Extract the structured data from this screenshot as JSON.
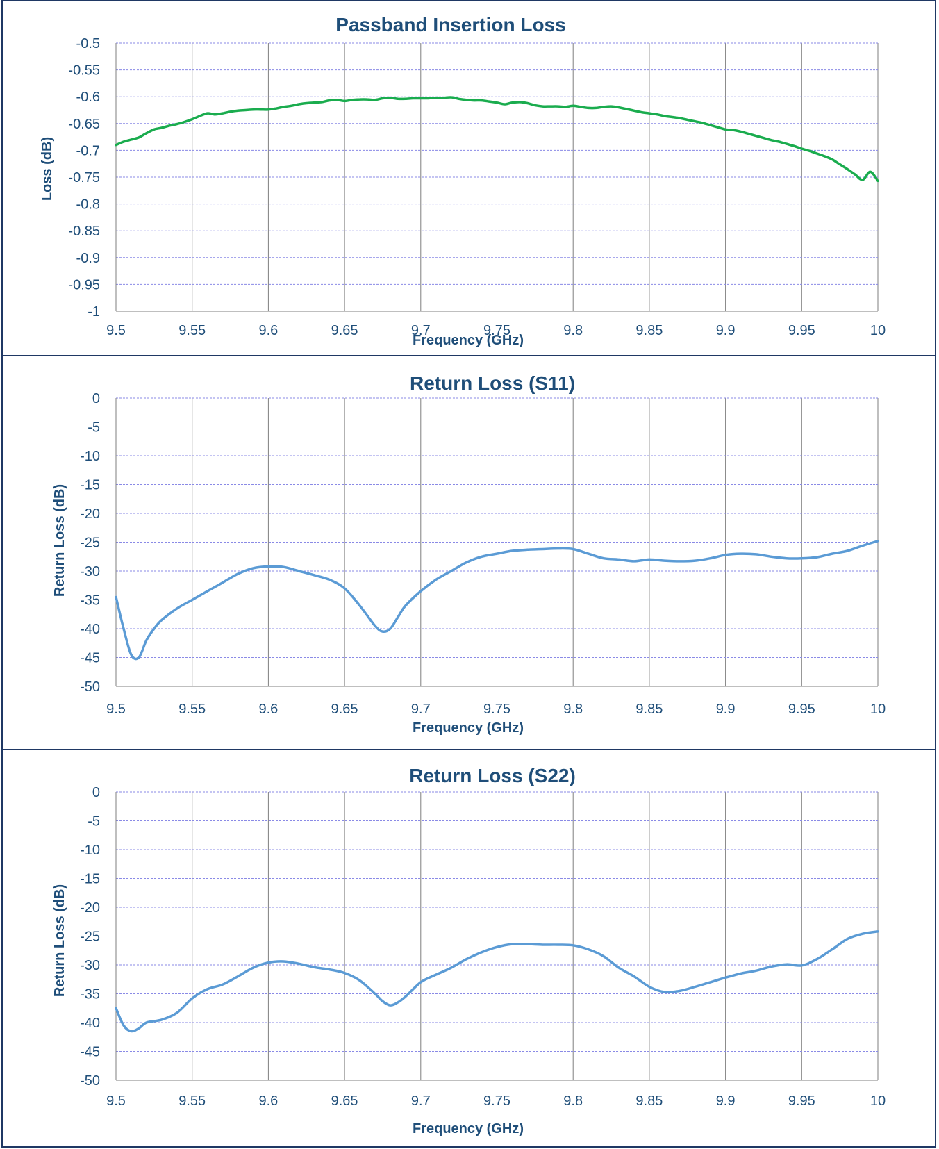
{
  "chart_data": [
    {
      "type": "line",
      "title": "Passband Insertion Loss",
      "xlabel": "Frequency (GHz)",
      "ylabel": "Loss (dB)",
      "xlim": [
        9.5,
        10
      ],
      "ylim": [
        -1,
        -0.5
      ],
      "x_ticks": [
        "9.5",
        "9.55",
        "9.6",
        "9.65",
        "9.7",
        "9.75",
        "9.8",
        "9.85",
        "9.9",
        "9.95",
        "10"
      ],
      "y_ticks": [
        "-0.5",
        "-0.55",
        "-0.6",
        "-0.65",
        "-0.7",
        "-0.75",
        "-0.8",
        "-0.85",
        "-0.9",
        "-0.95",
        "-1"
      ],
      "y_tick_values": [
        -0.5,
        -0.55,
        -0.6,
        -0.65,
        -0.7,
        -0.75,
        -0.8,
        -0.85,
        -0.9,
        -0.95,
        -1
      ],
      "grid": true,
      "color": "#1aac4e",
      "series": [
        {
          "x": [
            9.5,
            9.505,
            9.51,
            9.515,
            9.52,
            9.525,
            9.53,
            9.535,
            9.54,
            9.545,
            9.55,
            9.555,
            9.56,
            9.565,
            9.57,
            9.575,
            9.58,
            9.585,
            9.59,
            9.595,
            9.6,
            9.605,
            9.61,
            9.615,
            9.62,
            9.625,
            9.63,
            9.635,
            9.64,
            9.645,
            9.65,
            9.655,
            9.66,
            9.665,
            9.67,
            9.675,
            9.68,
            9.685,
            9.69,
            9.695,
            9.7,
            9.705,
            9.71,
            9.715,
            9.72,
            9.725,
            9.73,
            9.735,
            9.74,
            9.745,
            9.75,
            9.755,
            9.76,
            9.765,
            9.77,
            9.775,
            9.78,
            9.785,
            9.79,
            9.795,
            9.8,
            9.805,
            9.81,
            9.815,
            9.82,
            9.825,
            9.83,
            9.835,
            9.84,
            9.845,
            9.85,
            9.855,
            9.86,
            9.865,
            9.87,
            9.875,
            9.88,
            9.885,
            9.89,
            9.895,
            9.9,
            9.905,
            9.91,
            9.915,
            9.92,
            9.925,
            9.93,
            9.935,
            9.94,
            9.945,
            9.95,
            9.955,
            9.96,
            9.965,
            9.97,
            9.975,
            9.98,
            9.985,
            9.99,
            9.995,
            10
          ],
          "y": [
            -0.69,
            -0.684,
            -0.68,
            -0.676,
            -0.668,
            -0.661,
            -0.658,
            -0.654,
            -0.651,
            -0.647,
            -0.642,
            -0.636,
            -0.631,
            -0.633,
            -0.631,
            -0.628,
            -0.626,
            -0.625,
            -0.624,
            -0.624,
            -0.624,
            -0.622,
            -0.619,
            -0.617,
            -0.614,
            -0.612,
            -0.611,
            -0.61,
            -0.607,
            -0.606,
            -0.608,
            -0.606,
            -0.605,
            -0.605,
            -0.606,
            -0.603,
            -0.602,
            -0.604,
            -0.604,
            -0.603,
            -0.603,
            -0.603,
            -0.602,
            -0.602,
            -0.601,
            -0.604,
            -0.606,
            -0.607,
            -0.607,
            -0.609,
            -0.611,
            -0.614,
            -0.611,
            -0.61,
            -0.612,
            -0.616,
            -0.618,
            -0.618,
            -0.618,
            -0.619,
            -0.617,
            -0.619,
            -0.621,
            -0.621,
            -0.619,
            -0.618,
            -0.62,
            -0.623,
            -0.626,
            -0.629,
            -0.631,
            -0.633,
            -0.636,
            -0.638,
            -0.64,
            -0.643,
            -0.646,
            -0.649,
            -0.653,
            -0.657,
            -0.661,
            -0.662,
            -0.665,
            -0.669,
            -0.673,
            -0.677,
            -0.681,
            -0.684,
            -0.688,
            -0.692,
            -0.697,
            -0.701,
            -0.706,
            -0.711,
            -0.717,
            -0.726,
            -0.735,
            -0.745,
            -0.755,
            -0.74,
            -0.757
          ]
        }
      ]
    },
    {
      "type": "line",
      "title": "Return Loss (S11)",
      "xlabel": "Frequency (GHz)",
      "ylabel": "Return Loss (dB)",
      "xlim": [
        9.5,
        10
      ],
      "ylim": [
        -50,
        0
      ],
      "x_ticks": [
        "9.5",
        "9.55",
        "9.6",
        "9.65",
        "9.7",
        "9.75",
        "9.8",
        "9.85",
        "9.9",
        "9.95",
        "10"
      ],
      "y_ticks": [
        "0",
        "-5",
        "-10",
        "-15",
        "-20",
        "-25",
        "-30",
        "-35",
        "-40",
        "-45",
        "-50"
      ],
      "y_tick_values": [
        0,
        -5,
        -10,
        -15,
        -20,
        -25,
        -30,
        -35,
        -40,
        -45,
        -50
      ],
      "grid": true,
      "color": "#5b9bd5",
      "series": [
        {
          "x": [
            9.5,
            9.505,
            9.51,
            9.515,
            9.52,
            9.525,
            9.53,
            9.54,
            9.55,
            9.56,
            9.57,
            9.58,
            9.59,
            9.6,
            9.61,
            9.62,
            9.63,
            9.64,
            9.65,
            9.66,
            9.67,
            9.675,
            9.68,
            9.685,
            9.69,
            9.7,
            9.71,
            9.72,
            9.73,
            9.74,
            9.75,
            9.76,
            9.77,
            9.78,
            9.79,
            9.8,
            9.81,
            9.82,
            9.83,
            9.84,
            9.85,
            9.86,
            9.87,
            9.88,
            9.89,
            9.9,
            9.91,
            9.92,
            9.93,
            9.94,
            9.95,
            9.96,
            9.97,
            9.98,
            9.99,
            10
          ],
          "y": [
            -34.5,
            -40,
            -44.5,
            -45,
            -42,
            -40,
            -38.5,
            -36.5,
            -35,
            -33.5,
            -32,
            -30.5,
            -29.5,
            -29.2,
            -29.3,
            -30,
            -30.7,
            -31.5,
            -33,
            -36,
            -39.5,
            -40.5,
            -40,
            -38,
            -36,
            -33.5,
            -31.5,
            -30,
            -28.5,
            -27.5,
            -27,
            -26.5,
            -26.3,
            -26.2,
            -26.1,
            -26.2,
            -27,
            -27.8,
            -28,
            -28.3,
            -28,
            -28.2,
            -28.3,
            -28.2,
            -27.8,
            -27.2,
            -27,
            -27.1,
            -27.5,
            -27.8,
            -27.8,
            -27.6,
            -27,
            -26.5,
            -25.6,
            -24.8
          ]
        }
      ]
    },
    {
      "type": "line",
      "title": "Return Loss (S22)",
      "xlabel": "Frequency (GHz)",
      "ylabel": "Return Loss (dB)",
      "xlim": [
        9.5,
        10
      ],
      "ylim": [
        -50,
        0
      ],
      "x_ticks": [
        "9.5",
        "9.55",
        "9.6",
        "9.65",
        "9.7",
        "9.75",
        "9.8",
        "9.85",
        "9.9",
        "9.95",
        "10"
      ],
      "y_ticks": [
        "0",
        "-5",
        "-10",
        "-15",
        "-20",
        "-25",
        "-30",
        "-35",
        "-40",
        "-45",
        "-50"
      ],
      "y_tick_values": [
        0,
        -5,
        -10,
        -15,
        -20,
        -25,
        -30,
        -35,
        -40,
        -45,
        -50
      ],
      "grid": true,
      "color": "#5b9bd5",
      "series": [
        {
          "x": [
            9.5,
            9.505,
            9.51,
            9.515,
            9.52,
            9.53,
            9.54,
            9.55,
            9.56,
            9.57,
            9.58,
            9.59,
            9.6,
            9.61,
            9.62,
            9.63,
            9.64,
            9.65,
            9.66,
            9.67,
            9.675,
            9.68,
            9.685,
            9.69,
            9.7,
            9.71,
            9.72,
            9.73,
            9.74,
            9.75,
            9.76,
            9.77,
            9.78,
            9.79,
            9.8,
            9.81,
            9.82,
            9.83,
            9.84,
            9.85,
            9.86,
            9.87,
            9.88,
            9.89,
            9.9,
            9.91,
            9.92,
            9.93,
            9.94,
            9.95,
            9.96,
            9.97,
            9.98,
            9.99,
            10
          ],
          "y": [
            -37.5,
            -40.5,
            -41.5,
            -41,
            -40,
            -39.5,
            -38.3,
            -35.8,
            -34.2,
            -33.4,
            -32,
            -30.5,
            -29.6,
            -29.4,
            -29.8,
            -30.4,
            -30.8,
            -31.4,
            -32.7,
            -35,
            -36.3,
            -37,
            -36.5,
            -35.5,
            -33,
            -31.7,
            -30.5,
            -29,
            -27.8,
            -26.9,
            -26.4,
            -26.4,
            -26.5,
            -26.5,
            -26.6,
            -27.3,
            -28.5,
            -30.5,
            -32,
            -33.8,
            -34.7,
            -34.5,
            -33.8,
            -33,
            -32.2,
            -31.5,
            -31,
            -30.3,
            -29.9,
            -30.1,
            -29,
            -27.3,
            -25.5,
            -24.6,
            -24.2
          ]
        }
      ]
    }
  ]
}
